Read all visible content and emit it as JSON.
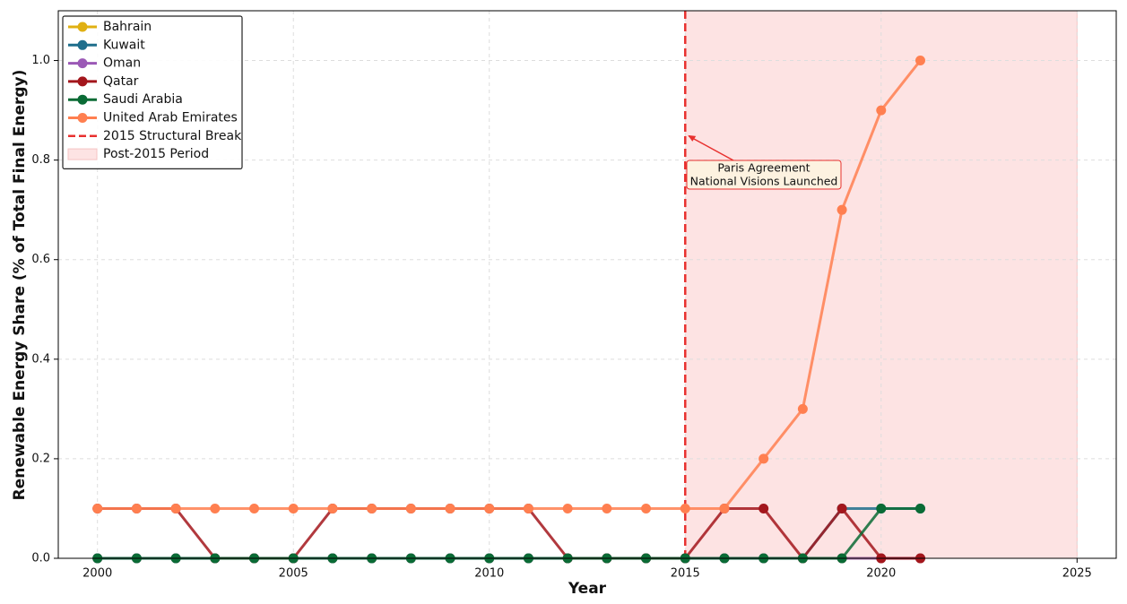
{
  "chart_data": {
    "type": "line",
    "x_label": "Year",
    "y_label": "Renewable Energy Share (% of Total Final Energy)",
    "x": [
      2000,
      2001,
      2002,
      2003,
      2004,
      2005,
      2006,
      2007,
      2008,
      2009,
      2010,
      2011,
      2012,
      2013,
      2014,
      2015,
      2016,
      2017,
      2018,
      2019,
      2020,
      2021
    ],
    "series": [
      {
        "name": "Bahrain",
        "color": "#e0b012",
        "values": [
          0,
          0,
          0,
          0,
          0,
          0,
          0,
          0,
          0,
          0,
          0,
          0,
          0,
          0,
          0,
          0,
          0,
          0,
          0,
          0,
          0,
          0
        ]
      },
      {
        "name": "Kuwait",
        "color": "#1f6e8c",
        "values": [
          0,
          0,
          0,
          0,
          0,
          0,
          0,
          0,
          0,
          0,
          0,
          0,
          0,
          0,
          0,
          0,
          0,
          0,
          0,
          0.1,
          0.1,
          0.1
        ]
      },
      {
        "name": "Oman",
        "color": "#9b59b6",
        "values": [
          0,
          0,
          0,
          0,
          0,
          0,
          0,
          0,
          0,
          0,
          0,
          0,
          0,
          0,
          0,
          0,
          0,
          0,
          0,
          0,
          0,
          0
        ]
      },
      {
        "name": "Qatar",
        "color": "#a3161c",
        "values": [
          0.1,
          0.1,
          0.1,
          0,
          0,
          0,
          0.1,
          0.1,
          0.1,
          0.1,
          0.1,
          0.1,
          0,
          0,
          0,
          0,
          0.1,
          0.1,
          0,
          0.1,
          0,
          0
        ]
      },
      {
        "name": "Saudi Arabia",
        "color": "#0a6b35",
        "values": [
          0,
          0,
          0,
          0,
          0,
          0,
          0,
          0,
          0,
          0,
          0,
          0,
          0,
          0,
          0,
          0,
          0,
          0,
          0,
          0,
          0.1,
          0.1
        ]
      },
      {
        "name": "United Arab Emirates",
        "color": "#ff7f50",
        "values": [
          0.1,
          0.1,
          0.1,
          0.1,
          0.1,
          0.1,
          0.1,
          0.1,
          0.1,
          0.1,
          0.1,
          0.1,
          0.1,
          0.1,
          0.1,
          0.1,
          0.1,
          0.2,
          0.3,
          0.7,
          0.9,
          1.0
        ]
      }
    ],
    "structural_break": {
      "x": 2015,
      "label": "2015 Structural Break",
      "color": "#e8312f"
    },
    "shaded_period": {
      "x": [
        2015,
        2025
      ],
      "label": "Post-2015 Period",
      "color": "#fde3e3"
    },
    "annotation": {
      "lines": [
        "Paris Agreement",
        "National Visions Launched"
      ],
      "x": 2015,
      "y": 0.85
    },
    "xlim": [
      1999,
      2026
    ],
    "ylim": [
      0,
      1.1
    ],
    "xticks": [
      2000,
      2005,
      2010,
      2015,
      2020,
      2025
    ],
    "yticks": [
      {
        "value": 0,
        "label": "0.0"
      },
      0.2,
      0.4,
      0.6,
      0.8,
      {
        "value": 1,
        "label": "1.0"
      }
    ],
    "grid": true,
    "legend": "upper left"
  }
}
